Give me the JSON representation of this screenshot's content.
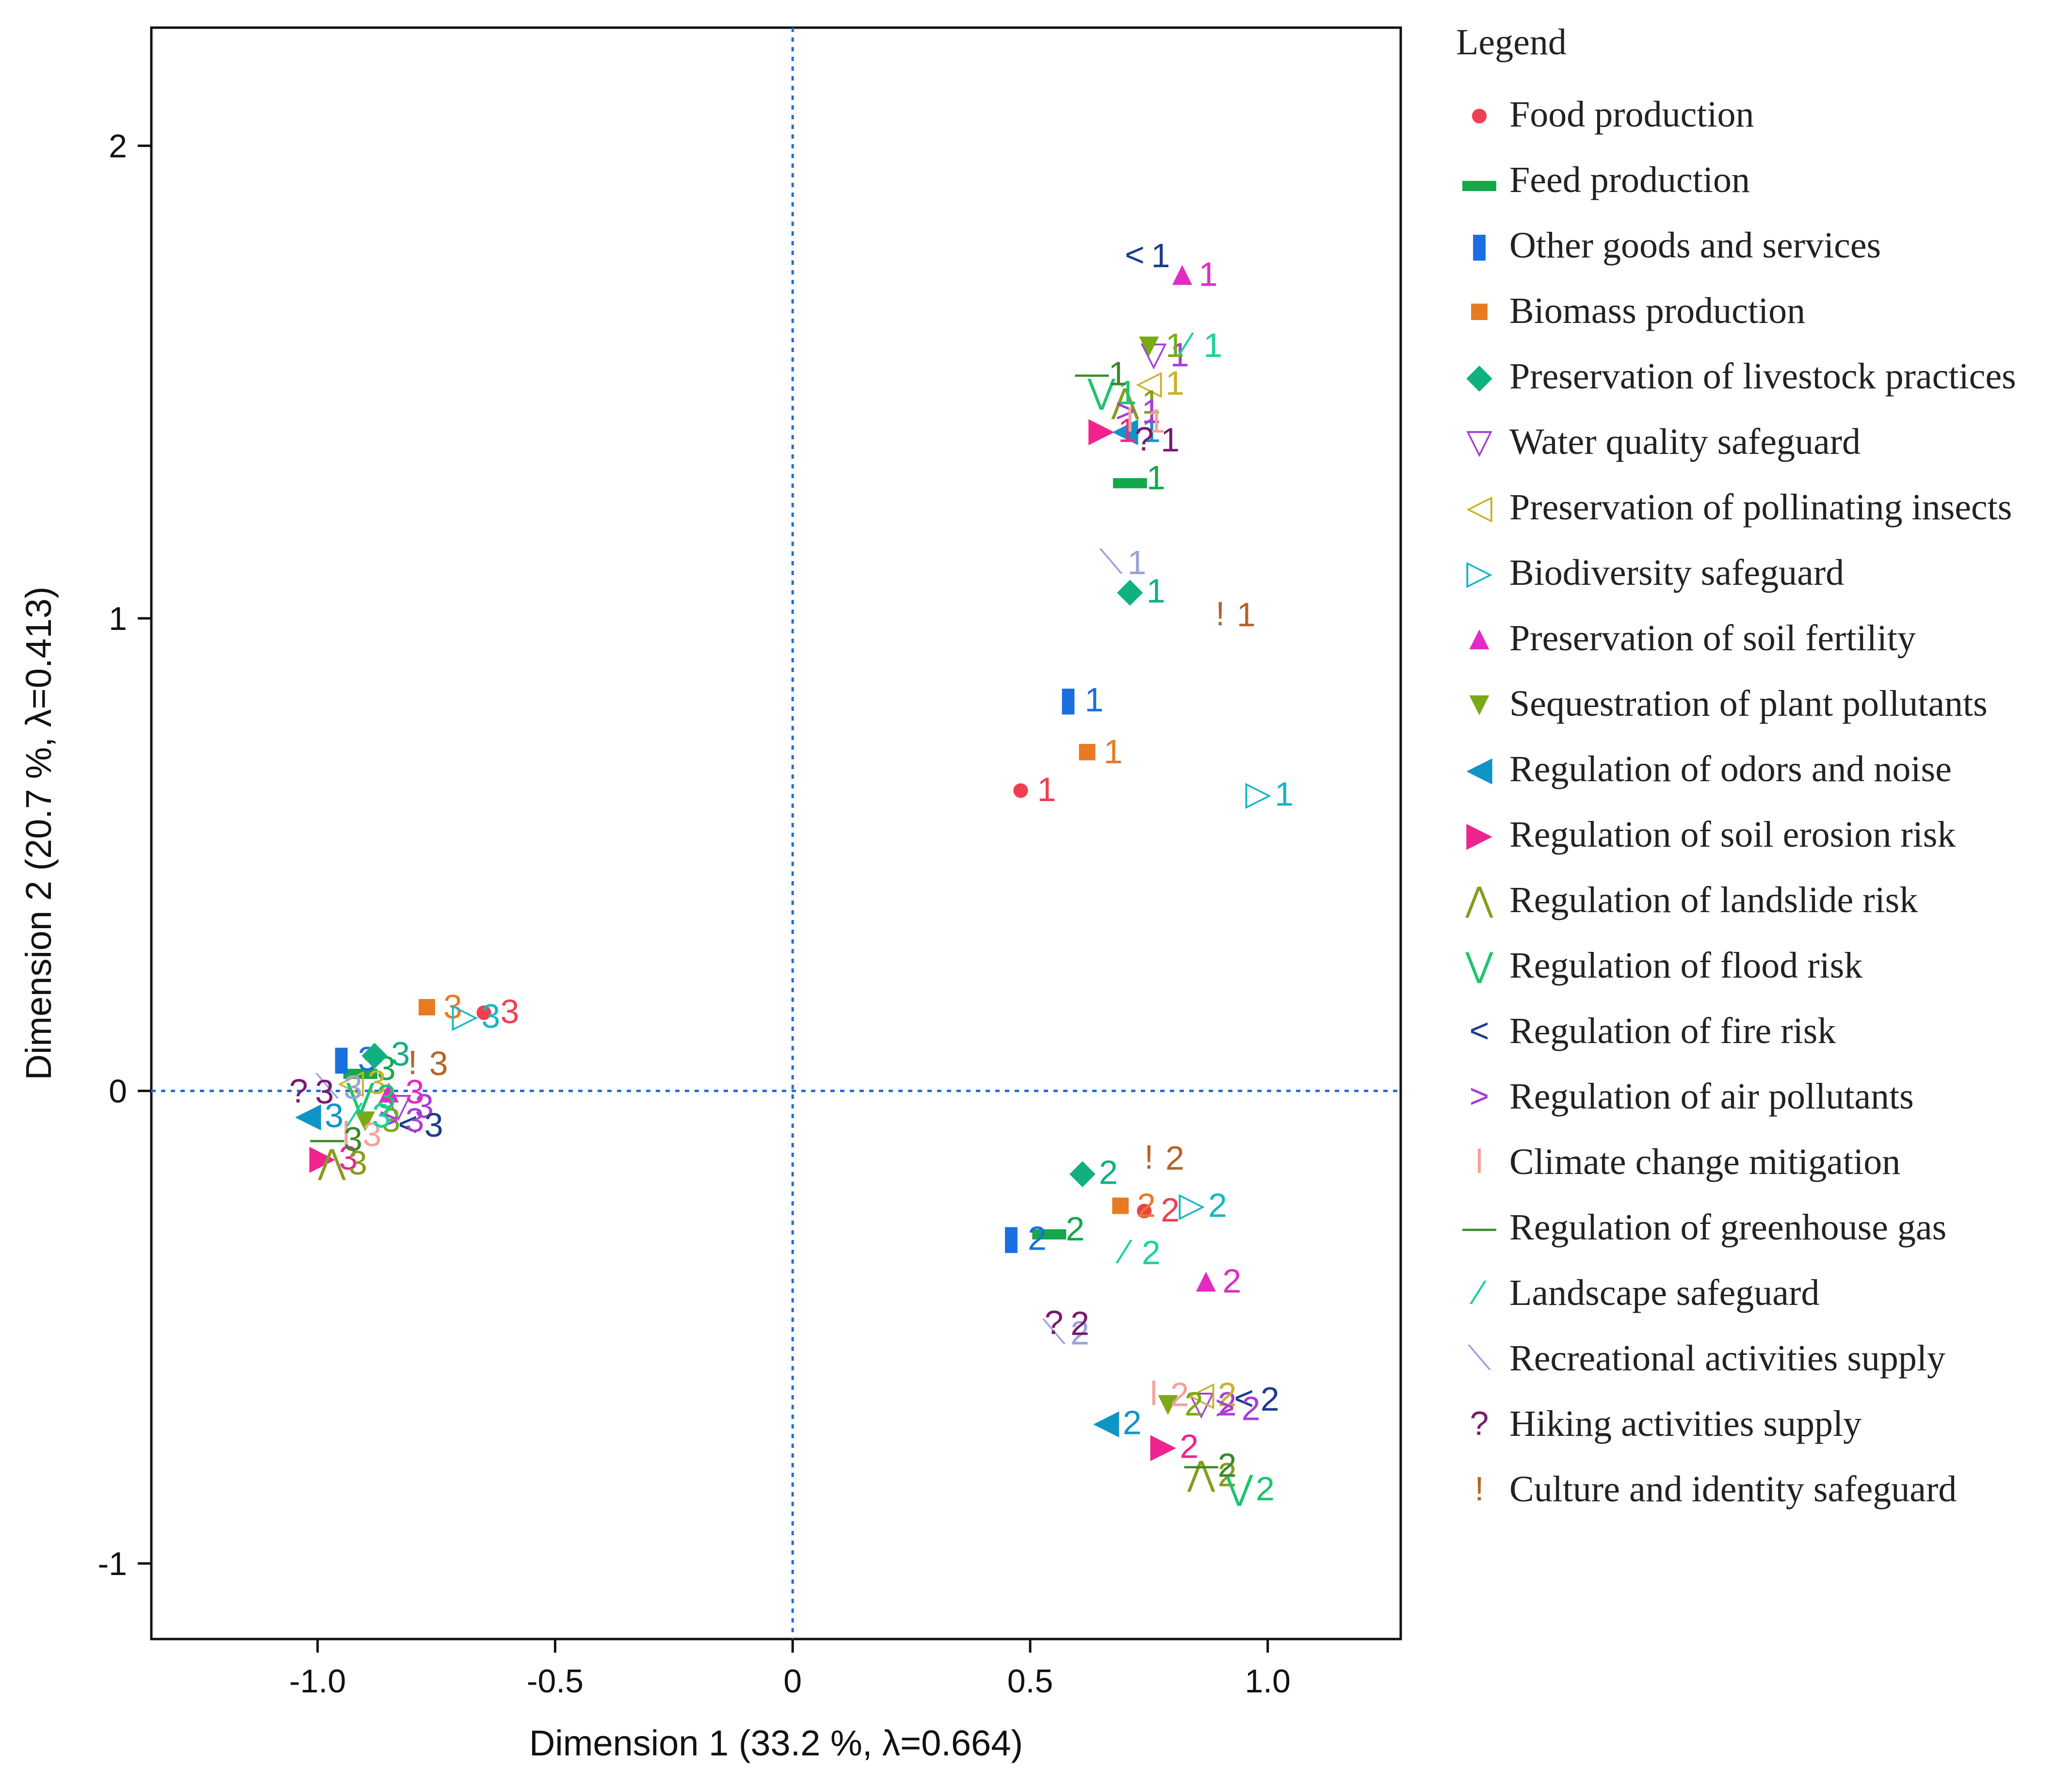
{
  "chart_data": {
    "type": "scatter",
    "title": "",
    "xlabel": "Dimension 1  (33.2 %, λ=0.664)",
    "ylabel": "Dimension 2  (20.7 %, λ=0.413)",
    "xlim": [
      -1.35,
      1.28
    ],
    "ylim": [
      -1.16,
      2.25
    ],
    "x_ticks": [
      -1.0,
      -0.5,
      0,
      0.5,
      1.0
    ],
    "x_tick_labels": [
      "-1.0",
      "-0.5",
      "0",
      "0.5",
      "1.0"
    ],
    "y_ticks": [
      -1,
      0,
      1,
      2
    ],
    "y_tick_labels": [
      "-1",
      "0",
      "1",
      "2"
    ],
    "reference_lines": {
      "x": 0,
      "y": 0,
      "style": "dotted",
      "color": "#1a6fe0"
    },
    "legend": {
      "title": "Legend",
      "placement": "right"
    },
    "series": [
      {
        "name": "Food production",
        "marker": "●",
        "color": "#ee4050",
        "points": [
          {
            "label": "1",
            "x": 0.48,
            "y": 0.64
          },
          {
            "label": "2",
            "x": 0.74,
            "y": -0.25
          },
          {
            "label": "3",
            "x": -0.65,
            "y": 0.17
          }
        ]
      },
      {
        "name": "Feed production",
        "marker": "▬",
        "color": "#14a84a",
        "points": [
          {
            "label": "1",
            "x": 0.71,
            "y": 1.3
          },
          {
            "label": "2",
            "x": 0.54,
            "y": -0.29
          },
          {
            "label": "3",
            "x": -0.91,
            "y": 0.05
          }
        ]
      },
      {
        "name": "Other goods and services",
        "marker": "▮",
        "color": "#1a6fe0",
        "points": [
          {
            "label": "1",
            "x": 0.58,
            "y": 0.83
          },
          {
            "label": "2",
            "x": 0.46,
            "y": -0.31
          },
          {
            "label": "3",
            "x": -0.95,
            "y": 0.07
          }
        ]
      },
      {
        "name": "Biomass production",
        "marker": "■",
        "color": "#e77b24",
        "points": [
          {
            "label": "1",
            "x": 0.62,
            "y": 0.72
          },
          {
            "label": "2",
            "x": 0.69,
            "y": -0.24
          },
          {
            "label": "3",
            "x": -0.77,
            "y": 0.18
          }
        ]
      },
      {
        "name": "Preservation of livestock practices",
        "marker": "◆",
        "color": "#11b080",
        "points": [
          {
            "label": "1",
            "x": 0.71,
            "y": 1.06
          },
          {
            "label": "2",
            "x": 0.61,
            "y": -0.17
          },
          {
            "label": "3",
            "x": -0.88,
            "y": 0.08
          }
        ]
      },
      {
        "name": "Water quality safeguard",
        "marker": "▽",
        "color": "#a63ed6",
        "points": [
          {
            "label": "1",
            "x": 0.76,
            "y": 1.56
          },
          {
            "label": "2",
            "x": 0.86,
            "y": -0.66
          },
          {
            "label": "3",
            "x": -0.83,
            "y": -0.03
          }
        ]
      },
      {
        "name": "Preservation of pollinating insects",
        "marker": "◁",
        "color": "#c9b22a",
        "points": [
          {
            "label": "1",
            "x": 0.75,
            "y": 1.5
          },
          {
            "label": "2",
            "x": 0.86,
            "y": -0.64
          },
          {
            "label": "3",
            "x": -0.93,
            "y": 0.02
          }
        ]
      },
      {
        "name": "Biodiversity safeguard",
        "marker": "▷",
        "color": "#15b8bf",
        "points": [
          {
            "label": "1",
            "x": 0.98,
            "y": 0.63
          },
          {
            "label": "2",
            "x": 0.84,
            "y": -0.24
          },
          {
            "label": "3",
            "x": -0.69,
            "y": 0.16
          }
        ]
      },
      {
        "name": "Preservation of soil fertility",
        "marker": "▲",
        "color": "#e22ac5",
        "points": [
          {
            "label": "1",
            "x": 0.82,
            "y": 1.73
          },
          {
            "label": "2",
            "x": 0.87,
            "y": -0.4
          },
          {
            "label": "3",
            "x": -0.85,
            "y": 0.0
          }
        ]
      },
      {
        "name": "Sequestration of plant pollutants",
        "marker": "▼",
        "color": "#7aaa16",
        "points": [
          {
            "label": "1",
            "x": 0.75,
            "y": 1.58
          },
          {
            "label": "2",
            "x": 0.79,
            "y": -0.66
          },
          {
            "label": "3",
            "x": -0.9,
            "y": -0.06
          }
        ]
      },
      {
        "name": "Regulation of odors and noise",
        "marker": "◀",
        "color": "#0e95c6",
        "points": [
          {
            "label": "1",
            "x": 0.7,
            "y": 1.4
          },
          {
            "label": "2",
            "x": 0.66,
            "y": -0.7
          },
          {
            "label": "3",
            "x": -1.02,
            "y": -0.05
          }
        ]
      },
      {
        "name": "Regulation of soil erosion risk",
        "marker": "▶",
        "color": "#f0238f",
        "points": [
          {
            "label": "1",
            "x": 0.65,
            "y": 1.4
          },
          {
            "label": "2",
            "x": 0.78,
            "y": -0.75
          },
          {
            "label": "3",
            "x": -0.99,
            "y": -0.14
          }
        ]
      },
      {
        "name": "Regulation of landslide risk",
        "marker": "⋀",
        "color": "#8a9a1e",
        "points": [
          {
            "label": "1",
            "x": 0.7,
            "y": 1.46
          },
          {
            "label": "2",
            "x": 0.86,
            "y": -0.81
          },
          {
            "label": "3",
            "x": -0.97,
            "y": -0.15
          }
        ]
      },
      {
        "name": "Regulation of flood risk",
        "marker": "⋁",
        "color": "#1fc46f",
        "points": [
          {
            "label": "1",
            "x": 0.65,
            "y": 1.48
          },
          {
            "label": "2",
            "x": 0.94,
            "y": -0.84
          },
          {
            "label": "3",
            "x": -0.91,
            "y": -0.01
          }
        ]
      },
      {
        "name": "Regulation of fire risk",
        "marker": "<",
        "color": "#1d3c8c",
        "points": [
          {
            "label": "1",
            "x": 0.72,
            "y": 1.77
          },
          {
            "label": "2",
            "x": 0.95,
            "y": -0.65
          },
          {
            "label": "3",
            "x": -0.81,
            "y": -0.07
          }
        ]
      },
      {
        "name": "Regulation of air pollutants",
        "marker": ">",
        "color": "#a63ed6",
        "points": [
          {
            "label": "1",
            "x": 0.7,
            "y": 1.44
          },
          {
            "label": "2",
            "x": 0.91,
            "y": -0.67
          },
          {
            "label": "3",
            "x": -0.85,
            "y": -0.06
          }
        ]
      },
      {
        "name": "Climate change mitigation",
        "marker": "ǀ",
        "color": "#f4a29a",
        "points": [
          {
            "label": "1",
            "x": 0.71,
            "y": 1.42
          },
          {
            "label": "2",
            "x": 0.76,
            "y": -0.64
          },
          {
            "label": "3",
            "x": -0.94,
            "y": -0.09
          }
        ]
      },
      {
        "name": "Regulation of greenhouse gas",
        "marker": "—",
        "color": "#3a8a2a",
        "points": [
          {
            "label": "1",
            "x": 0.63,
            "y": 1.52
          },
          {
            "label": "2",
            "x": 0.86,
            "y": -0.79
          },
          {
            "label": "3",
            "x": -0.98,
            "y": -0.1
          }
        ]
      },
      {
        "name": "Landscape safeguard",
        "marker": "⁄",
        "color": "#19d29c",
        "points": [
          {
            "label": "1",
            "x": 0.83,
            "y": 1.58
          },
          {
            "label": "2",
            "x": 0.7,
            "y": -0.34
          },
          {
            "label": "3",
            "x": -0.92,
            "y": -0.05
          }
        ]
      },
      {
        "name": "Recreational activities supply",
        "marker": "⟍",
        "color": "#9aa3d6",
        "points": [
          {
            "label": "1",
            "x": 0.67,
            "y": 1.12
          },
          {
            "label": "2",
            "x": 0.55,
            "y": -0.51
          },
          {
            "label": "3",
            "x": -0.98,
            "y": 0.01
          }
        ]
      },
      {
        "name": "Hiking activities supply",
        "marker": "?",
        "color": "#7a1a6e",
        "points": [
          {
            "label": "1",
            "x": 0.74,
            "y": 1.38
          },
          {
            "label": "2",
            "x": 0.55,
            "y": -0.49
          },
          {
            "label": "3",
            "x": -1.04,
            "y": 0.0
          }
        ]
      },
      {
        "name": "Culture and identity safeguard",
        "marker": "!",
        "color": "#b5632a",
        "points": [
          {
            "label": "1",
            "x": 0.9,
            "y": 1.01
          },
          {
            "label": "2",
            "x": 0.75,
            "y": -0.14
          },
          {
            "label": "3",
            "x": -0.8,
            "y": 0.06
          }
        ]
      }
    ]
  }
}
